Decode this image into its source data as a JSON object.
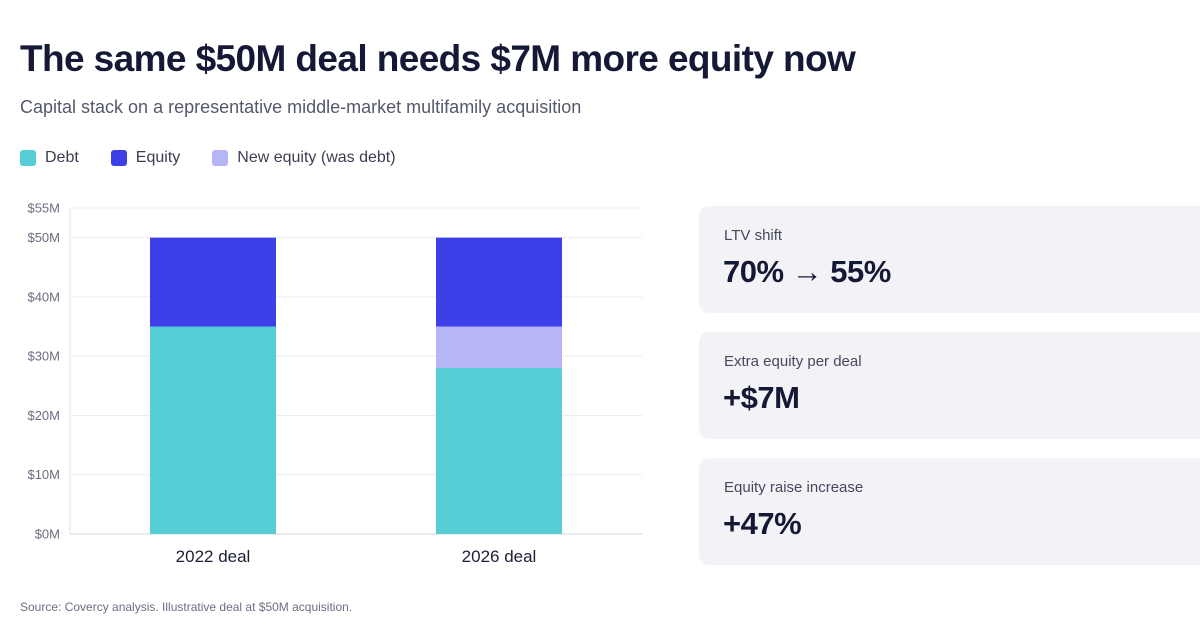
{
  "header": {
    "title": "The same $50M deal needs $7M more equity now",
    "subtitle": "Capital stack on a representative middle-market multifamily acquisition"
  },
  "legend": [
    {
      "label": "Debt",
      "color": "#55ced8"
    },
    {
      "label": "Equity",
      "color": "#3d3fe9"
    },
    {
      "label": "New equity (was debt)",
      "color": "#b6b6f7"
    }
  ],
  "chart_data": {
    "type": "bar",
    "stacked": true,
    "categories": [
      "2022 deal",
      "2026 deal"
    ],
    "series": [
      {
        "name": "Debt",
        "values": [
          35,
          28
        ],
        "color": "#55ced8"
      },
      {
        "name": "New equity (was debt)",
        "values": [
          0,
          7
        ],
        "color": "#b6b6f7"
      },
      {
        "name": "Equity",
        "values": [
          15,
          15
        ],
        "color": "#3d3fe9"
      }
    ],
    "y_ticks": [
      0,
      10,
      20,
      30,
      40,
      50,
      55
    ],
    "y_tick_labels": [
      "$0M",
      "$10M",
      "$20M",
      "$30M",
      "$40M",
      "$50M",
      "$55M"
    ],
    "ylim": [
      0,
      55
    ],
    "grid": true,
    "legend_placement": "top-left"
  },
  "stats": [
    {
      "label": "LTV shift",
      "value": "70% → 55%"
    },
    {
      "label": "Extra equity per deal",
      "value": "+$7M"
    },
    {
      "label": "Equity raise increase",
      "value": "+47%"
    }
  ],
  "footer": {
    "source": "Source: Covercy analysis. Illustrative deal at $50M acquisition."
  }
}
